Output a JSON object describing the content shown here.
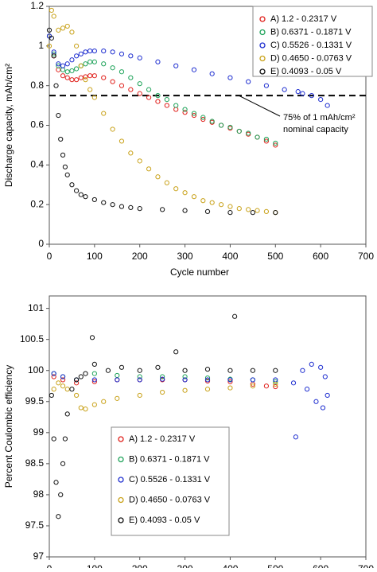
{
  "chart_data": [
    {
      "type": "scatter",
      "ylabel": "Discharge capacity, mAh/cm²",
      "xlabel": "Cycle number",
      "xlim": [
        0,
        700
      ],
      "xticks": [
        0,
        100,
        200,
        300,
        400,
        500,
        600,
        700
      ],
      "ylim": [
        0,
        1.2
      ],
      "yticks": [
        0,
        0.2,
        0.4,
        0.6,
        0.8,
        1,
        1.2
      ],
      "reference_line": 0.75,
      "annotations": [
        "75% of 1 mAh/cm²",
        "nominal capacity"
      ],
      "legend": "upper right",
      "series": [
        {
          "name": "A) 1.2 - 0.2317 V",
          "color": "#e0201b",
          "x": [
            0,
            10,
            20,
            30,
            40,
            50,
            60,
            70,
            80,
            90,
            100,
            120,
            140,
            160,
            180,
            200,
            220,
            240,
            260,
            280,
            300,
            320,
            340,
            360,
            380,
            400,
            420,
            440,
            460,
            480,
            500
          ],
          "values": [
            1.05,
            0.95,
            0.88,
            0.85,
            0.84,
            0.83,
            0.83,
            0.84,
            0.845,
            0.85,
            0.85,
            0.84,
            0.82,
            0.8,
            0.78,
            0.76,
            0.74,
            0.72,
            0.7,
            0.68,
            0.665,
            0.65,
            0.63,
            0.615,
            0.6,
            0.585,
            0.57,
            0.555,
            0.54,
            0.52,
            0.5
          ]
        },
        {
          "name": "B) 0.6371 - 0.1871 V",
          "color": "#1fa35a",
          "x": [
            0,
            10,
            20,
            30,
            40,
            50,
            60,
            70,
            80,
            90,
            100,
            120,
            140,
            160,
            180,
            200,
            220,
            240,
            260,
            280,
            300,
            320,
            340,
            360,
            380,
            400,
            420,
            440,
            460,
            480,
            500
          ],
          "values": [
            1.05,
            0.96,
            0.9,
            0.88,
            0.87,
            0.875,
            0.885,
            0.9,
            0.91,
            0.92,
            0.92,
            0.91,
            0.89,
            0.87,
            0.84,
            0.81,
            0.78,
            0.75,
            0.73,
            0.7,
            0.68,
            0.66,
            0.64,
            0.62,
            0.6,
            0.59,
            0.57,
            0.56,
            0.54,
            0.53,
            0.51
          ]
        },
        {
          "name": "C) 0.5526 - 0.1331 V",
          "color": "#1f2fd0",
          "x": [
            0,
            10,
            20,
            30,
            40,
            50,
            60,
            70,
            80,
            90,
            100,
            120,
            140,
            160,
            180,
            200,
            240,
            280,
            320,
            360,
            400,
            440,
            480,
            520,
            550,
            560,
            580,
            600,
            615
          ],
          "values": [
            1.05,
            0.97,
            0.91,
            0.9,
            0.91,
            0.93,
            0.95,
            0.96,
            0.97,
            0.975,
            0.975,
            0.975,
            0.97,
            0.96,
            0.95,
            0.94,
            0.92,
            0.9,
            0.88,
            0.86,
            0.84,
            0.82,
            0.8,
            0.78,
            0.77,
            0.76,
            0.75,
            0.73,
            0.7
          ]
        },
        {
          "name": "D) 0.4650 - 0.0763 V",
          "color": "#c9a21a",
          "x": [
            0,
            5,
            10,
            20,
            30,
            40,
            50,
            60,
            70,
            80,
            90,
            100,
            120,
            140,
            160,
            180,
            200,
            220,
            240,
            260,
            280,
            300,
            320,
            340,
            360,
            380,
            400,
            420,
            440,
            460,
            480,
            500
          ],
          "values": [
            1.0,
            1.18,
            1.15,
            1.08,
            1.09,
            1.1,
            1.07,
            1.0,
            0.9,
            0.83,
            0.78,
            0.74,
            0.66,
            0.58,
            0.52,
            0.46,
            0.42,
            0.38,
            0.34,
            0.31,
            0.28,
            0.26,
            0.24,
            0.22,
            0.21,
            0.2,
            0.19,
            0.18,
            0.175,
            0.17,
            0.165,
            0.16
          ]
        },
        {
          "name": "E) 0.4093 - 0.05 V",
          "color": "#111111",
          "x": [
            0,
            5,
            10,
            15,
            20,
            25,
            30,
            35,
            40,
            50,
            60,
            70,
            80,
            100,
            120,
            140,
            160,
            180,
            200,
            250,
            300,
            350,
            400,
            450,
            500
          ],
          "values": [
            1.08,
            1.04,
            0.95,
            0.8,
            0.65,
            0.53,
            0.45,
            0.39,
            0.35,
            0.3,
            0.27,
            0.25,
            0.24,
            0.225,
            0.21,
            0.2,
            0.19,
            0.185,
            0.18,
            0.175,
            0.17,
            0.165,
            0.16,
            0.16,
            0.16
          ]
        }
      ]
    },
    {
      "type": "scatter",
      "ylabel": "Percent Coulombic efficiency",
      "xlabel": "Cycle number",
      "xlim": [
        0,
        700
      ],
      "xticks": [
        0,
        100,
        200,
        300,
        400,
        500,
        600,
        700
      ],
      "ylim": [
        97,
        101.2
      ],
      "yticks": [
        97,
        97.5,
        98,
        98.5,
        99,
        99.5,
        100,
        100.5,
        101
      ],
      "legend": "lower left",
      "series": [
        {
          "name": "A) 1.2 - 0.2317 V",
          "color": "#e0201b",
          "x": [
            10,
            30,
            60,
            100,
            150,
            200,
            250,
            300,
            350,
            400,
            450,
            480,
            500
          ],
          "values": [
            99.9,
            99.85,
            99.8,
            99.82,
            99.85,
            99.85,
            99.85,
            99.85,
            99.83,
            99.82,
            99.78,
            99.75,
            99.74
          ]
        },
        {
          "name": "B) 0.6371 - 0.1871 V",
          "color": "#1fa35a",
          "x": [
            10,
            30,
            60,
            100,
            150,
            200,
            250,
            300,
            350,
            400,
            450,
            500
          ],
          "values": [
            99.95,
            99.9,
            99.85,
            99.95,
            99.92,
            99.9,
            99.9,
            99.9,
            99.88,
            99.86,
            99.85,
            99.82
          ]
        },
        {
          "name": "C) 0.5526 - 0.1331 V",
          "color": "#1f2fd0",
          "x": [
            10,
            30,
            60,
            100,
            150,
            200,
            250,
            300,
            350,
            400,
            450,
            500,
            540,
            545,
            560,
            570,
            580,
            590,
            600,
            605,
            610,
            615
          ],
          "values": [
            99.95,
            99.9,
            99.85,
            99.85,
            99.85,
            99.85,
            99.86,
            99.85,
            99.85,
            99.85,
            99.85,
            99.85,
            99.8,
            98.93,
            100.0,
            99.7,
            100.1,
            99.5,
            100.05,
            99.4,
            99.9,
            99.6
          ]
        },
        {
          "name": "D) 0.4650 - 0.0763 V",
          "color": "#c9a21a",
          "x": [
            10,
            20,
            30,
            40,
            60,
            70,
            80,
            100,
            120,
            150,
            200,
            250,
            300,
            350,
            400,
            450,
            500
          ],
          "values": [
            99.7,
            99.8,
            99.75,
            99.7,
            99.6,
            99.4,
            99.38,
            99.45,
            99.5,
            99.55,
            99.6,
            99.65,
            99.68,
            99.7,
            99.72,
            99.75,
            99.78
          ]
        },
        {
          "name": "E) 0.4093 - 0.05 V",
          "color": "#111111",
          "x": [
            5,
            10,
            15,
            20,
            25,
            30,
            35,
            40,
            50,
            60,
            70,
            80,
            95,
            100,
            130,
            160,
            200,
            240,
            280,
            300,
            350,
            400,
            410,
            450,
            500
          ],
          "values": [
            99.6,
            98.9,
            98.2,
            97.65,
            98.0,
            98.5,
            98.9,
            99.3,
            99.7,
            99.85,
            99.9,
            99.95,
            100.53,
            100.1,
            100.0,
            100.05,
            100.0,
            100.05,
            100.3,
            100.0,
            100.02,
            100.0,
            100.87,
            100.0,
            100.0
          ]
        }
      ]
    }
  ]
}
